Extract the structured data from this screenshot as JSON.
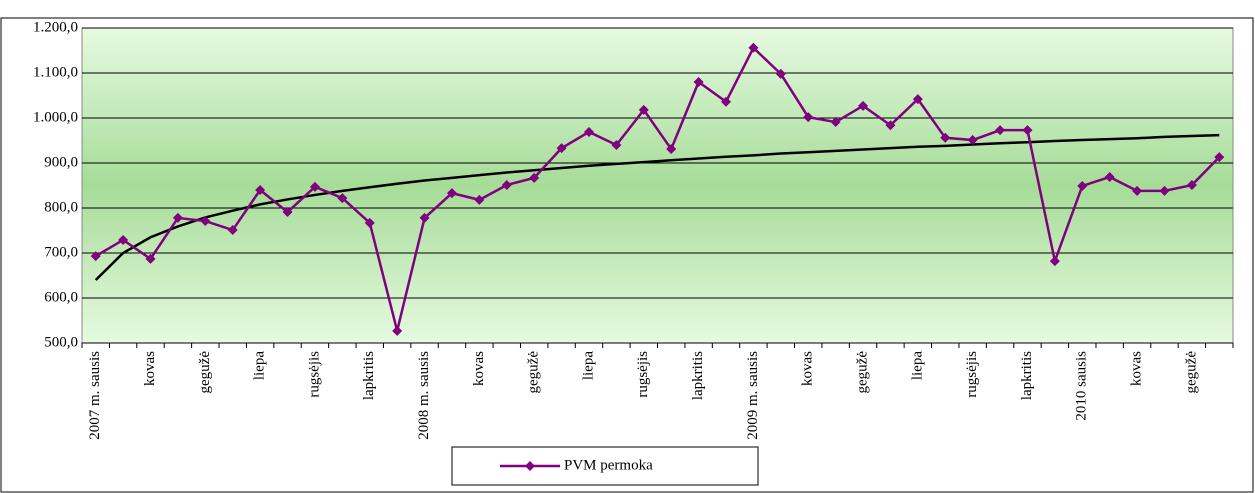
{
  "chart_data": {
    "type": "line",
    "categories": [
      "2007 m. sausis",
      null,
      "kovas",
      null,
      "gegužė",
      null,
      "liepa",
      null,
      "rugsėjis",
      null,
      "lapkritis",
      null,
      "2008 m. sausis",
      null,
      "kovas",
      null,
      "gegužė",
      null,
      "liepa",
      null,
      "rugsėjis",
      null,
      "lapkritis",
      null,
      "2009 m. sausis",
      null,
      "kovas",
      null,
      "gegužė",
      null,
      "liepa",
      null,
      "rugsėjis",
      null,
      "lapkritis",
      null,
      "2010 sausis",
      null,
      "kovas",
      null,
      "gegužė",
      null
    ],
    "series": [
      {
        "name": "PVM permoka",
        "color": "#800080",
        "marker": "diamond",
        "values": [
          693,
          729,
          687,
          778,
          771,
          751,
          840,
          791,
          847,
          822,
          767,
          527,
          778,
          833,
          818,
          851,
          867,
          933,
          969,
          940,
          1018,
          931,
          1080,
          1036,
          1156,
          1098,
          1002,
          991,
          1027,
          984,
          1042,
          956,
          951,
          973,
          973,
          682,
          849,
          869,
          838,
          838,
          851,
          913
        ]
      },
      {
        "color": "#000000",
        "values": [
          640,
          700,
          735,
          759,
          779,
          794,
          808,
          819,
          829,
          838,
          846,
          854,
          861,
          867,
          873,
          879,
          884,
          889,
          894,
          898,
          902,
          906,
          910,
          914,
          917,
          921,
          924,
          927,
          930,
          933,
          936,
          938,
          941,
          944,
          946,
          949,
          951,
          953,
          955,
          958,
          960,
          962
        ]
      }
    ],
    "ylim": [
      500,
      1200
    ],
    "yticks": [
      {
        "value": 500,
        "label": "500,0"
      },
      {
        "value": 600,
        "label": "600,0"
      },
      {
        "value": 700,
        "label": "700,0"
      },
      {
        "value": 800,
        "label": "800,0"
      },
      {
        "value": 900,
        "label": "900,0"
      },
      {
        "value": 1000,
        "label": "1.000,0"
      },
      {
        "value": 1100,
        "label": "1.100,0"
      },
      {
        "value": 1200,
        "label": "1.200,0"
      }
    ],
    "grid": true,
    "legend": "bottom"
  }
}
